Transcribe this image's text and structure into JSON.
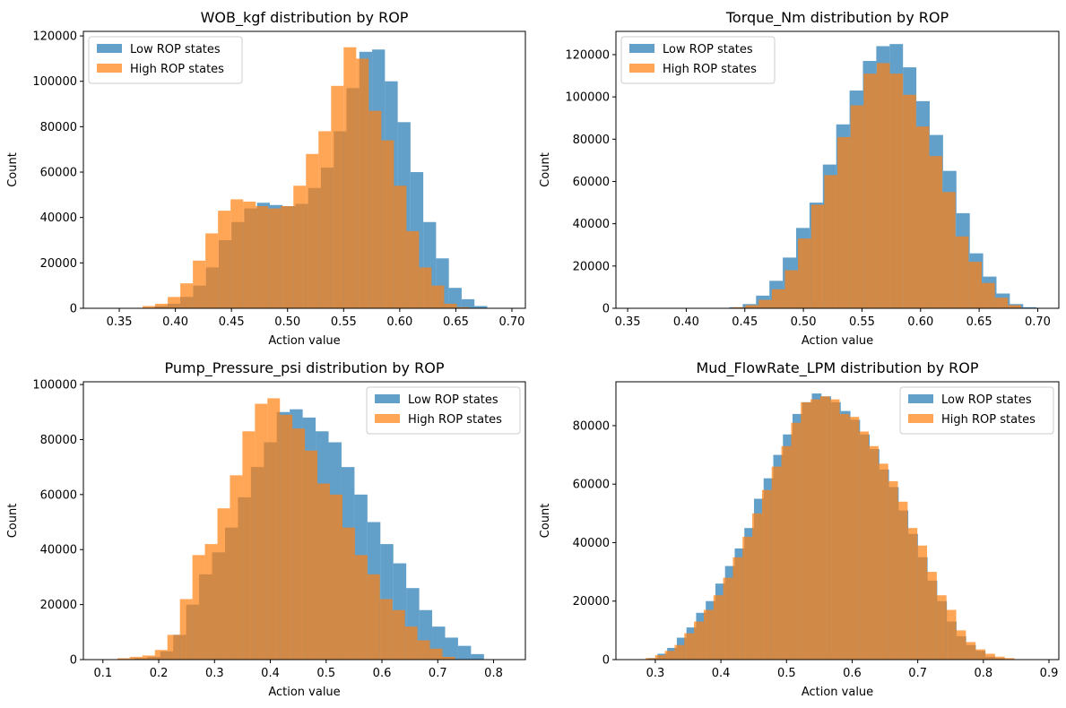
{
  "colors": {
    "low": "#1f77b4",
    "high": "#ff7f0e",
    "axis": "#000000",
    "background": "#ffffff"
  },
  "chart_data": [
    {
      "type": "histogram",
      "title": "WOB_kgf distribution by ROP",
      "xlabel": "Action value",
      "ylabel": "Count",
      "xlim": [
        0.318,
        0.712
      ],
      "ylim": [
        0,
        122000
      ],
      "xticks": [
        0.35,
        0.4,
        0.45,
        0.5,
        0.55,
        0.6,
        0.65,
        0.7
      ],
      "yticks": [
        0,
        20000,
        40000,
        60000,
        80000,
        100000,
        120000
      ],
      "grid": false,
      "legend_position": "upper-left",
      "series": [
        {
          "name": "Low ROP states",
          "color": "#1f77b4",
          "alpha": 0.7,
          "bin_start": 0.336,
          "bin_width": 0.0114,
          "counts": [
            0,
            0,
            0,
            0,
            1000,
            2000,
            5000,
            10000,
            18000,
            30000,
            38000,
            44000,
            46500,
            45500,
            45000,
            46000,
            53000,
            62000,
            78000,
            97000,
            113000,
            114000,
            100000,
            82000,
            60000,
            38000,
            22000,
            9000,
            4000,
            1000,
            0
          ]
        },
        {
          "name": "High ROP states",
          "color": "#ff7f0e",
          "alpha": 0.7,
          "bin_start": 0.326,
          "bin_width": 0.0112,
          "counts": [
            0,
            0,
            0,
            0,
            1000,
            2000,
            5000,
            11000,
            21000,
            33000,
            43000,
            48000,
            47000,
            45000,
            44000,
            45000,
            54000,
            68000,
            78000,
            98000,
            115000,
            110000,
            87000,
            74000,
            54000,
            34000,
            18000,
            10000,
            2000,
            500,
            0
          ]
        }
      ]
    },
    {
      "type": "histogram",
      "title": "Torque_Nm distribution by ROP",
      "xlabel": "Action value",
      "ylabel": "Count",
      "xlim": [
        0.34,
        0.718
      ],
      "ylim": [
        0,
        131000
      ],
      "xticks": [
        0.35,
        0.4,
        0.45,
        0.5,
        0.55,
        0.6,
        0.65,
        0.7
      ],
      "yticks": [
        0,
        20000,
        40000,
        60000,
        80000,
        100000,
        120000
      ],
      "grid": false,
      "legend_position": "upper-left",
      "series": [
        {
          "name": "Low ROP states",
          "color": "#1f77b4",
          "alpha": 0.7,
          "bin_start": 0.357,
          "bin_width": 0.0114,
          "counts": [
            0,
            0,
            0,
            0,
            0,
            0,
            0,
            500,
            2000,
            6000,
            13000,
            24000,
            38000,
            50000,
            68000,
            87000,
            103000,
            117000,
            124000,
            125000,
            114000,
            98000,
            82000,
            65000,
            45000,
            26000,
            15000,
            7000,
            2000,
            500,
            0
          ]
        },
        {
          "name": "High ROP states",
          "color": "#ff7f0e",
          "alpha": 0.7,
          "bin_start": 0.361,
          "bin_width": 0.0112,
          "counts": [
            0,
            0,
            0,
            0,
            0,
            0,
            0,
            500,
            1500,
            4000,
            9000,
            18000,
            33000,
            49000,
            63000,
            81000,
            96000,
            111000,
            116000,
            111000,
            101000,
            86000,
            72000,
            55000,
            34000,
            22000,
            12000,
            5000,
            1500,
            0,
            0
          ]
        }
      ]
    },
    {
      "type": "histogram",
      "title": "Pump_Pressure_psi distribution by ROP",
      "xlabel": "Action value",
      "ylabel": "Count",
      "xlim": [
        0.065,
        0.857
      ],
      "ylim": [
        0,
        101000
      ],
      "xticks": [
        0.1,
        0.2,
        0.3,
        0.4,
        0.5,
        0.6,
        0.7,
        0.8
      ],
      "yticks": [
        0,
        20000,
        40000,
        60000,
        80000,
        100000
      ],
      "grid": false,
      "legend_position": "upper-right",
      "series": [
        {
          "name": "Low ROP states",
          "color": "#1f77b4",
          "alpha": 0.7,
          "bin_start": 0.11,
          "bin_width": 0.0232,
          "counts": [
            0,
            0,
            500,
            1000,
            3000,
            9000,
            20000,
            31000,
            39000,
            48000,
            59000,
            70000,
            79000,
            90000,
            91000,
            88000,
            83000,
            79000,
            70000,
            60000,
            50000,
            42000,
            35000,
            26000,
            18000,
            12000,
            8000,
            5000,
            2000,
            0
          ]
        },
        {
          "name": "High ROP states",
          "color": "#ff7f0e",
          "alpha": 0.7,
          "bin_start": 0.126,
          "bin_width": 0.0224,
          "counts": [
            500,
            1000,
            1500,
            3500,
            9000,
            22000,
            38000,
            42000,
            55000,
            67000,
            83000,
            93000,
            95000,
            89000,
            84000,
            76000,
            64000,
            60000,
            48000,
            38000,
            31000,
            22000,
            18000,
            12000,
            7000,
            4000,
            1000,
            0,
            0,
            0
          ]
        }
      ]
    },
    {
      "type": "histogram",
      "title": "Mud_FlowRate_LPM distribution by ROP",
      "xlabel": "Action value",
      "ylabel": "Count",
      "xlim": [
        0.24,
        0.915
      ],
      "ylim": [
        0,
        95000
      ],
      "xticks": [
        0.3,
        0.4,
        0.5,
        0.6,
        0.7,
        0.8,
        0.9
      ],
      "yticks": [
        0,
        20000,
        40000,
        60000,
        80000
      ],
      "grid": false,
      "legend_position": "upper-right",
      "series": [
        {
          "name": "Low ROP states",
          "color": "#1f77b4",
          "alpha": 0.7,
          "bin_start": 0.274,
          "bin_width": 0.0147,
          "counts": [
            0,
            500,
            2000,
            4000,
            7500,
            11000,
            16000,
            20000,
            26000,
            32000,
            38000,
            45000,
            55000,
            62000,
            70000,
            77000,
            84000,
            88000,
            91000,
            90000,
            88000,
            85000,
            82000,
            77000,
            72000,
            65000,
            59000,
            51000,
            43000,
            35000,
            27000,
            20000,
            13000,
            8000,
            5000,
            3000,
            1000,
            500,
            0,
            0
          ]
        },
        {
          "name": "High ROP states",
          "color": "#ff7f0e",
          "alpha": 0.7,
          "bin_start": 0.285,
          "bin_width": 0.0148,
          "counts": [
            500,
            1500,
            3000,
            5000,
            9000,
            13000,
            17000,
            22000,
            28000,
            35000,
            42000,
            50000,
            58000,
            66000,
            73000,
            81000,
            88000,
            89000,
            90000,
            89000,
            84000,
            83000,
            78000,
            73000,
            67000,
            61000,
            54000,
            45000,
            39000,
            30000,
            22000,
            17000,
            10000,
            6000,
            3500,
            2000,
            1000,
            500,
            0,
            0
          ]
        }
      ]
    }
  ]
}
